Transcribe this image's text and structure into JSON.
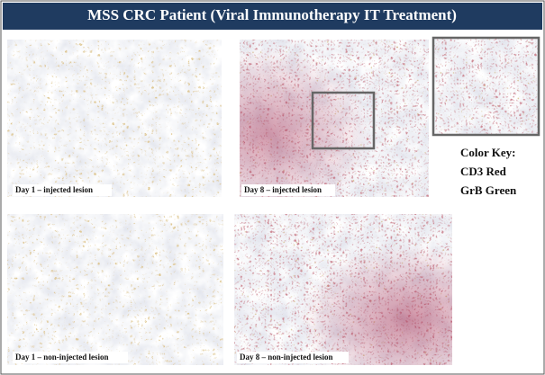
{
  "header": {
    "title": "MSS CRC Patient (Viral Immunotherapy IT Treatment)"
  },
  "panels": [
    {
      "label": "Day 1 – injected lesion"
    },
    {
      "label": "Day 8 – injected lesion"
    },
    {
      "label": "Day 1 – non-injected lesion"
    },
    {
      "label": "Day 8 – non-injected lesion"
    }
  ],
  "color_key": {
    "title": "Color Key:",
    "items": [
      "CD3 Red",
      "GrB Green"
    ]
  }
}
